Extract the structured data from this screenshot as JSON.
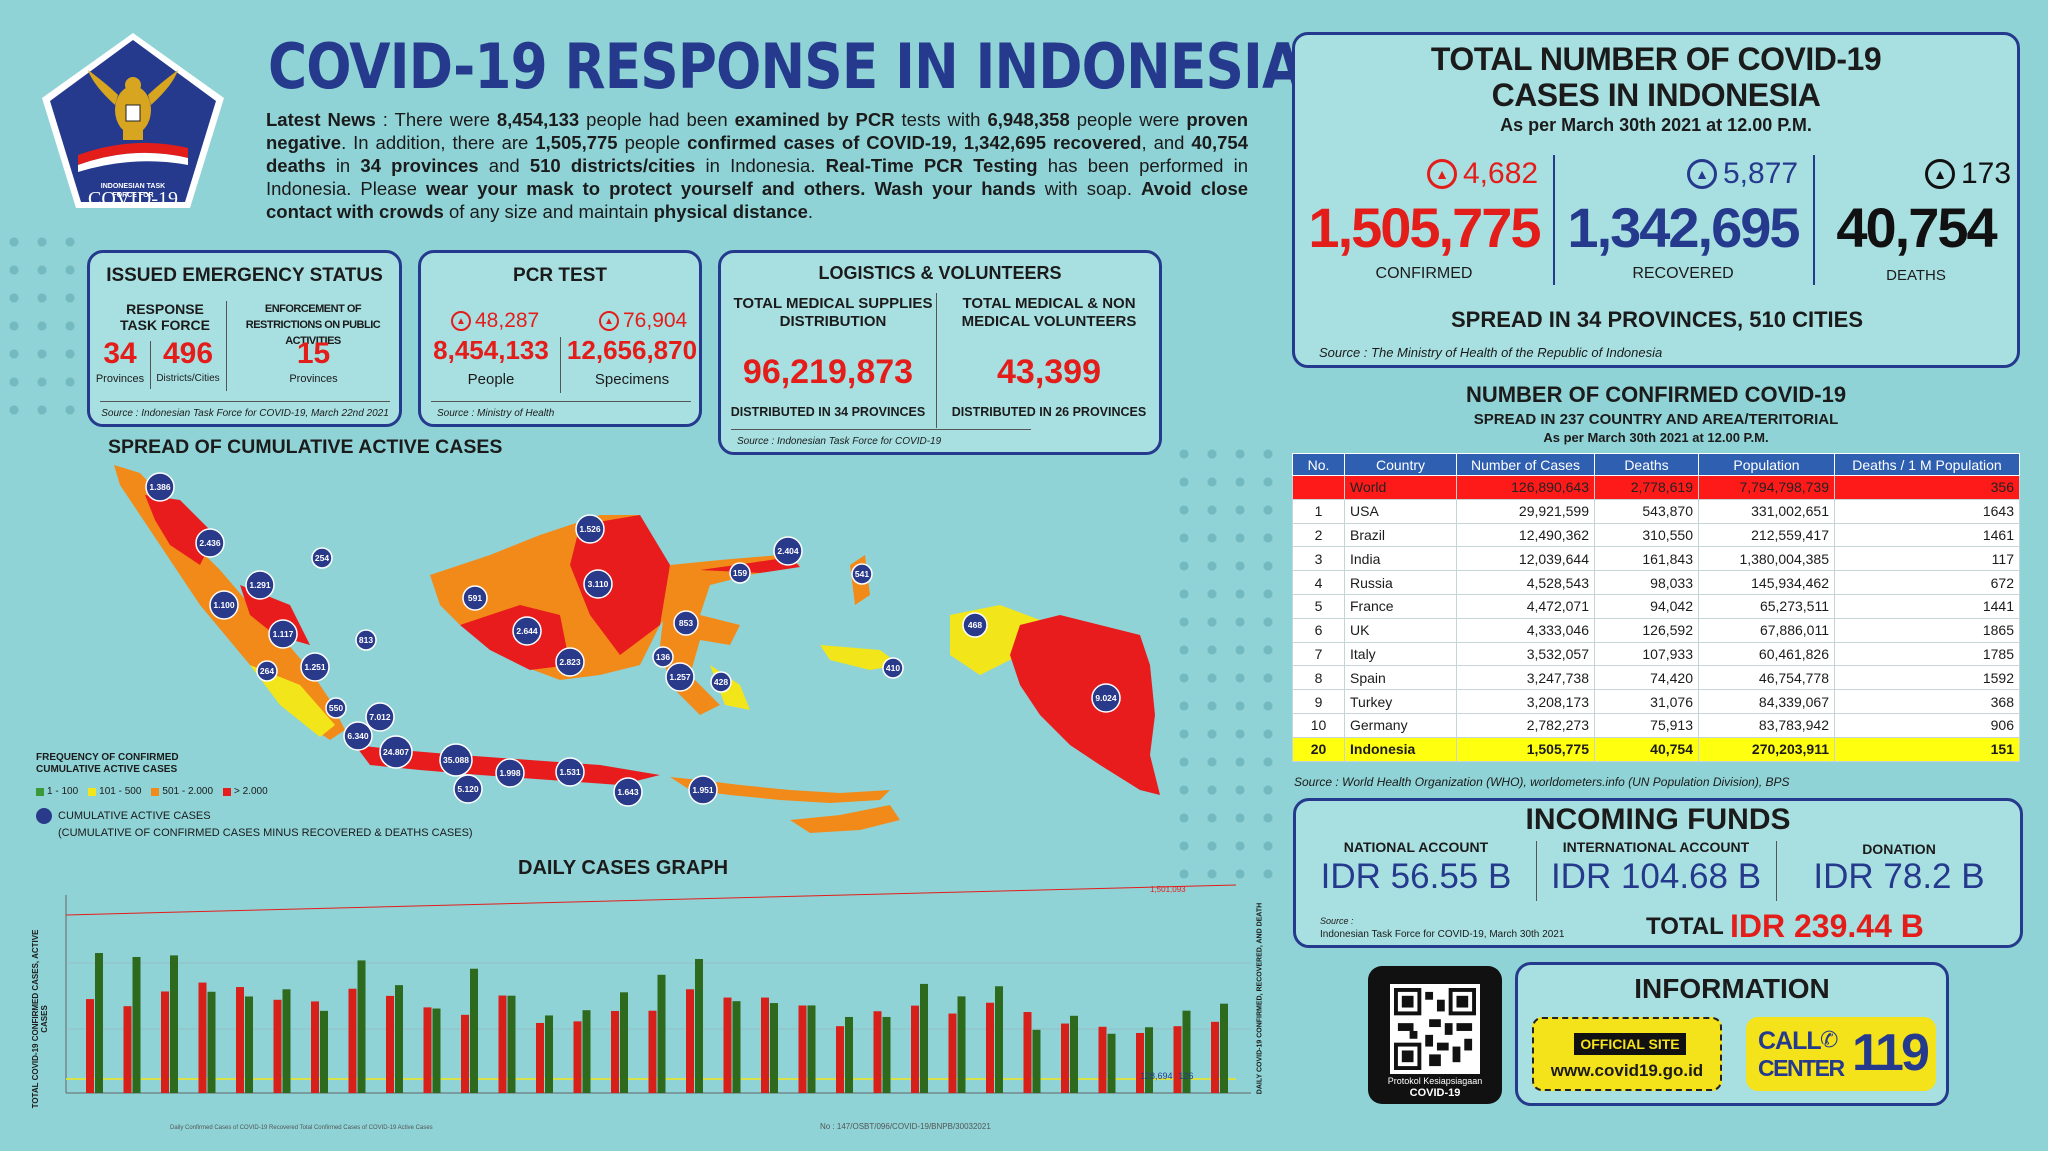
{
  "logo": {
    "line1": "INDONESIAN TASK",
    "line2": "FORCE FOR",
    "line3": "COVID-19"
  },
  "title": "COVID-19 RESPONSE IN INDONESIA",
  "news": {
    "label": "Latest News",
    "t1": " : There were ",
    "pcr_people": "8,454,133",
    "t2": " people had been ",
    "examined": "examined by PCR",
    "t3": " tests with ",
    "negative_count": "6,948,358",
    "t4": " people were ",
    "negative": "proven negative",
    "t5": ". In addition, there are ",
    "confirmed_count": "1,505,775",
    "t6": " people ",
    "confirmed": "confirmed cases of COVID-19,",
    "t7": " ",
    "recovered_count": "1,342,695",
    "t8": " ",
    "recovered": "recovered",
    "t9": ", and ",
    "deaths_count": "40,754",
    "t10": " ",
    "deaths": "deaths",
    "t11": " in ",
    "provinces": "34 provinces",
    "t12": " and ",
    "districts": "510 districts/cities",
    "t13": " in Indonesia. ",
    "realtime": "Real-Time PCR Testing",
    "t14": " has been performed in Indonesia. Please ",
    "mask": "wear your mask to protect yourself and others. Wash your hands",
    "t15": " with soap. ",
    "avoid": "Avoid close contact with crowds",
    "t16": " of any size and maintain ",
    "distance": "physical distance",
    "t17": "."
  },
  "emergency": {
    "title": "ISSUED EMERGENCY STATUS",
    "col1_label": "RESPONSE TASK FORCE",
    "col2_label": "ENFORCEMENT OF RESTRICTIONS ON PUBLIC ACTIVITIES",
    "provinces_value": "34",
    "provinces_label": "Provinces",
    "districts_value": "496",
    "districts_label": "Districts/Cities",
    "restrict_value": "15",
    "restrict_label": "Provinces",
    "source": "Source : Indonesian Task Force for COVID-19, March 22nd 2021"
  },
  "pcr": {
    "title": "PCR TEST",
    "people_delta": "48,287",
    "people_value": "8,454,133",
    "people_label": "People",
    "specimen_delta": "76,904",
    "specimen_value": "12,656,870",
    "specimen_label": "Specimens",
    "source": "Source : Ministry of Health"
  },
  "logistics": {
    "title": "LOGISTICS & VOLUNTEERS",
    "col1_label": "TOTAL MEDICAL SUPPLIES DISTRIBUTION",
    "col1_value": "96,219,873",
    "col1_sub": "DISTRIBUTED IN 34 PROVINCES",
    "col2_label": "TOTAL MEDICAL & NON MEDICAL VOLUNTEERS",
    "col2_value": "43,399",
    "col2_sub": "DISTRIBUTED IN 26 PROVINCES",
    "source": "Source : Indonesian Task Force for COVID-19"
  },
  "map": {
    "title": "SPREAD OF CUMULATIVE ACTIVE CASES",
    "legend_title": "FREQUENCY OF CONFIRMED CUMULATIVE ACTIVE CASES",
    "legend": [
      {
        "label": "1 - 100",
        "color": "#3a9a3a"
      },
      {
        "label": "101 - 500",
        "color": "#f2e61a"
      },
      {
        "label": "501 - 2.000",
        "color": "#f28a1a"
      },
      {
        "label": "> 2.000",
        "color": "#e81c1c"
      }
    ],
    "circle_label": "CUMULATIVE ACTIVE CASES",
    "circle_sub": "(CUMULATIVE OF CONFIRMED CASES MINUS RECOVERED & DEATHS CASES)",
    "bubbles": [
      "1.386",
      "2.436",
      "254",
      "1.291",
      "1.100",
      "1.117",
      "813",
      "264",
      "1.251",
      "550",
      "7.012",
      "6.340",
      "24.807",
      "35.088",
      "5.120",
      "1.998",
      "1.531",
      "1.643",
      "1.951",
      "591",
      "1.526",
      "3.110",
      "2.644",
      "2.823",
      "159",
      "2.404",
      "541",
      "853",
      "136",
      "1.257",
      "428",
      "468",
      "410",
      "9.024"
    ]
  },
  "graph": {
    "title": "DAILY CASES GRAPH",
    "ylabel_left": "TOTAL COVID-19 CONFIRMED CASES, ACTIVE CASES",
    "ylabel_right": "DAILY COVID-19 CONFIRMED, RECOVERED, AND DEATH",
    "top_label": "1,501,093",
    "end_label": "128,694",
    "end_label2": "126",
    "legend": "Daily Confirmed Cases of COVID-19   Recovered   Total Confirmed Cases of COVID-19   Active Cases",
    "doc_no": "No : 147/OSBT/096/COVID-19/BNPB/30032021",
    "bars": [
      {
        "c": 6180,
        "r": 9210
      },
      {
        "c": 5712,
        "r": 8948
      },
      {
        "c": 6680,
        "r": 9053
      },
      {
        "c": 7264,
        "r": 6660
      },
      {
        "c": 6971,
        "r": 6351
      },
      {
        "c": 6133,
        "r": 6823
      },
      {
        "c": 6025,
        "r": 5403
      },
      {
        "c": 6859,
        "r": 8723
      },
      {
        "c": 6389,
        "r": 7096
      },
      {
        "c": 5633,
        "r": 5558
      },
      {
        "c": 5144,
        "r": 8176
      },
      {
        "c": 6412,
        "r": 6401
      },
      {
        "c": 4607,
        "r": 5101
      },
      {
        "c": 4713,
        "r": 5447
      },
      {
        "c": 5396,
        "r": 6626
      },
      {
        "c": 5414,
        "r": 7776
      },
      {
        "c": 6825,
        "r": 8816
      },
      {
        "c": 6279,
        "r": 6040
      },
      {
        "c": 6279,
        "r": 5917
      },
      {
        "c": 5756,
        "r": 5760
      },
      {
        "c": 4396,
        "r": 5003
      },
      {
        "c": 5379,
        "r": 5003
      },
      {
        "c": 5748,
        "r": 7177
      },
      {
        "c": 5227,
        "r": 6357
      },
      {
        "c": 5937,
        "r": 7022
      },
      {
        "c": 5327,
        "r": 4156
      },
      {
        "c": 4569,
        "r": 5079
      },
      {
        "c": 4356,
        "r": 3897
      },
      {
        "c": 3949,
        "r": 4326
      },
      {
        "c": 4396,
        "r": 5416
      },
      {
        "c": 4682,
        "r": 5877
      }
    ]
  },
  "total": {
    "title_line1": "TOTAL NUMBER OF COVID-19",
    "title_line2": "CASES IN INDONESIA",
    "as_per": "As per March 30th 2021 at 12.00 P.M.",
    "confirmed_delta": "4,682",
    "confirmed": "1,505,775",
    "confirmed_label": "CONFIRMED",
    "recovered_delta": "5,877",
    "recovered": "1,342,695",
    "recovered_label": "RECOVERED",
    "deaths_delta": "173",
    "deaths": "40,754",
    "deaths_label": "DEATHS",
    "spread": "SPREAD IN 34 PROVINCES, 510 CITIES",
    "source": "Source : The Ministry of Health of the Republic of Indonesia"
  },
  "world": {
    "title": "NUMBER OF CONFIRMED COVID-19",
    "subtitle": "SPREAD IN 237 COUNTRY AND AREA/TERITORIAL",
    "as_per": "As per March 30th 2021 at 12.00 P.M.",
    "headers": [
      "No.",
      "Country",
      "Number of Cases",
      "Deaths",
      "Population",
      "Deaths / 1 M Population"
    ],
    "world_row": [
      "",
      "World",
      "126,890,643",
      "2,778,619",
      "7,794,798,739",
      "356"
    ],
    "rows": [
      [
        "1",
        "USA",
        "29,921,599",
        "543,870",
        "331,002,651",
        "1643"
      ],
      [
        "2",
        "Brazil",
        "12,490,362",
        "310,550",
        "212,559,417",
        "1461"
      ],
      [
        "3",
        "India",
        "12,039,644",
        "161,843",
        "1,380,004,385",
        "117"
      ],
      [
        "4",
        "Russia",
        "4,528,543",
        "98,033",
        "145,934,462",
        "672"
      ],
      [
        "5",
        "France",
        "4,472,071",
        "94,042",
        "65,273,511",
        "1441"
      ],
      [
        "6",
        "UK",
        "4,333,046",
        "126,592",
        "67,886,011",
        "1865"
      ],
      [
        "7",
        "Italy",
        "3,532,057",
        "107,933",
        "60,461,826",
        "1785"
      ],
      [
        "8",
        "Spain",
        "3,247,738",
        "74,420",
        "46,754,778",
        "1592"
      ],
      [
        "9",
        "Turkey",
        "3,208,173",
        "31,076",
        "84,339,067",
        "368"
      ],
      [
        "10",
        "Germany",
        "2,782,273",
        "75,913",
        "83,783,942",
        "906"
      ]
    ],
    "indo_row": [
      "20",
      "Indonesia",
      "1,505,775",
      "40,754",
      "270,203,911",
      "151"
    ],
    "source": "Source : World Health Organization (WHO), worldometers.info (UN Population Division), BPS"
  },
  "funds": {
    "title": "INCOMING FUNDS",
    "national_label": "NATIONAL ACCOUNT",
    "national_value": "IDR 56.55 B",
    "international_label": "INTERNATIONAL ACCOUNT",
    "international_value": "IDR 104.68 B",
    "donation_label": "DONATION",
    "donation_value": "IDR 78.2 B",
    "source_label": "Source :",
    "source": "Indonesian Task Force for COVID-19, March 30th 2021",
    "total_label": "TOTAL",
    "total_value": "IDR 239.44 B"
  },
  "qr": {
    "caption1": "Protokol Kesiapsiagaan",
    "caption2": "COVID-19"
  },
  "info": {
    "title": "INFORMATION",
    "official_label": "OFFICIAL SITE",
    "official_url": "www.covid19.go.id",
    "call_label1": "CALL",
    "call_label2": "CENTER",
    "call_number": "119"
  }
}
